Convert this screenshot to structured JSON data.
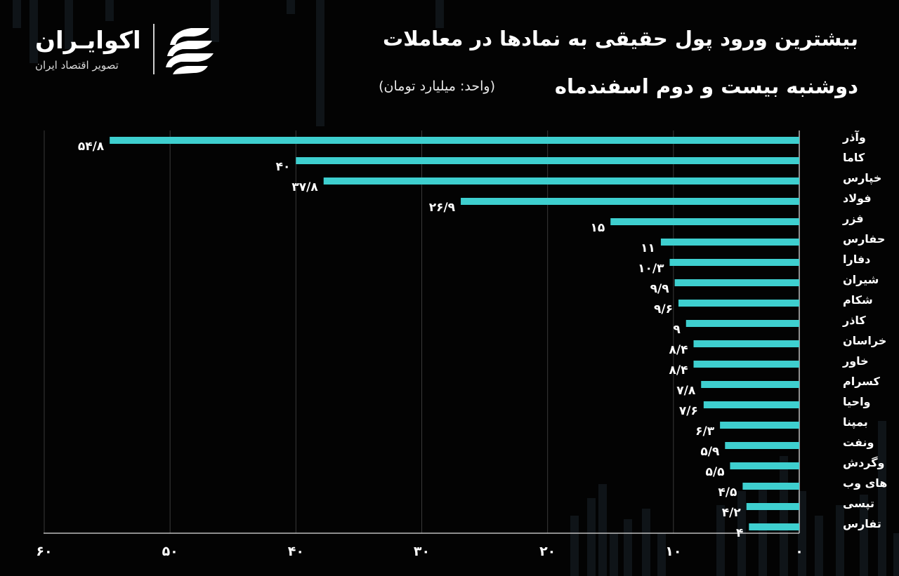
{
  "header": {
    "title_line1": "بیشترین ورود پول حقیقی به نمادها در معاملات",
    "title_line2": "دوشنبه بیست و دوم اسفندماه",
    "unit_note": "(واحد: میلیارد تومان)"
  },
  "logo": {
    "name": "اکوایـران",
    "tagline": "تصویر اقتصاد ایران"
  },
  "colors": {
    "background": "#030303",
    "bar": "#3ecfcf",
    "grid": "#3a3a3a",
    "axis": "#bdbdbd",
    "text": "#ffffff"
  },
  "chart_data": {
    "type": "bar",
    "orientation": "horizontal",
    "x_direction": "right-to-left",
    "categories": [
      "وآذر",
      "کاما",
      "خپارس",
      "فولاد",
      "فزر",
      "حفارس",
      "دفارا",
      "شیران",
      "شکام",
      "کاذر",
      "خراسان",
      "خاور",
      "کسرام",
      "واحیا",
      "بمپنا",
      "ونفت",
      "وگردش",
      "های وب",
      "تپسی",
      "تفارس"
    ],
    "values": [
      54.8,
      40,
      37.8,
      26.9,
      15,
      11,
      10.3,
      9.9,
      9.6,
      9,
      8.4,
      8.4,
      7.8,
      7.6,
      6.3,
      5.9,
      5.5,
      4.5,
      4.2,
      4
    ],
    "value_labels": [
      "۵۴/۸",
      "۴۰",
      "۳۷/۸",
      "۲۶/۹",
      "۱۵",
      "۱۱",
      "۱۰/۳",
      "۹/۹",
      "۹/۶",
      "۹",
      "۸/۴",
      "۸/۴",
      "۷/۸",
      "۷/۶",
      "۶/۳",
      "۵/۹",
      "۵/۵",
      "۴/۵",
      "۴/۲",
      "۴"
    ],
    "xlim": [
      0,
      60
    ],
    "x_ticks": [
      0,
      10,
      20,
      30,
      40,
      50,
      60
    ],
    "x_tick_labels": [
      "۰",
      "۱۰",
      "۲۰",
      "۳۰",
      "۴۰",
      "۵۰",
      "۶۰"
    ],
    "grid": true
  }
}
